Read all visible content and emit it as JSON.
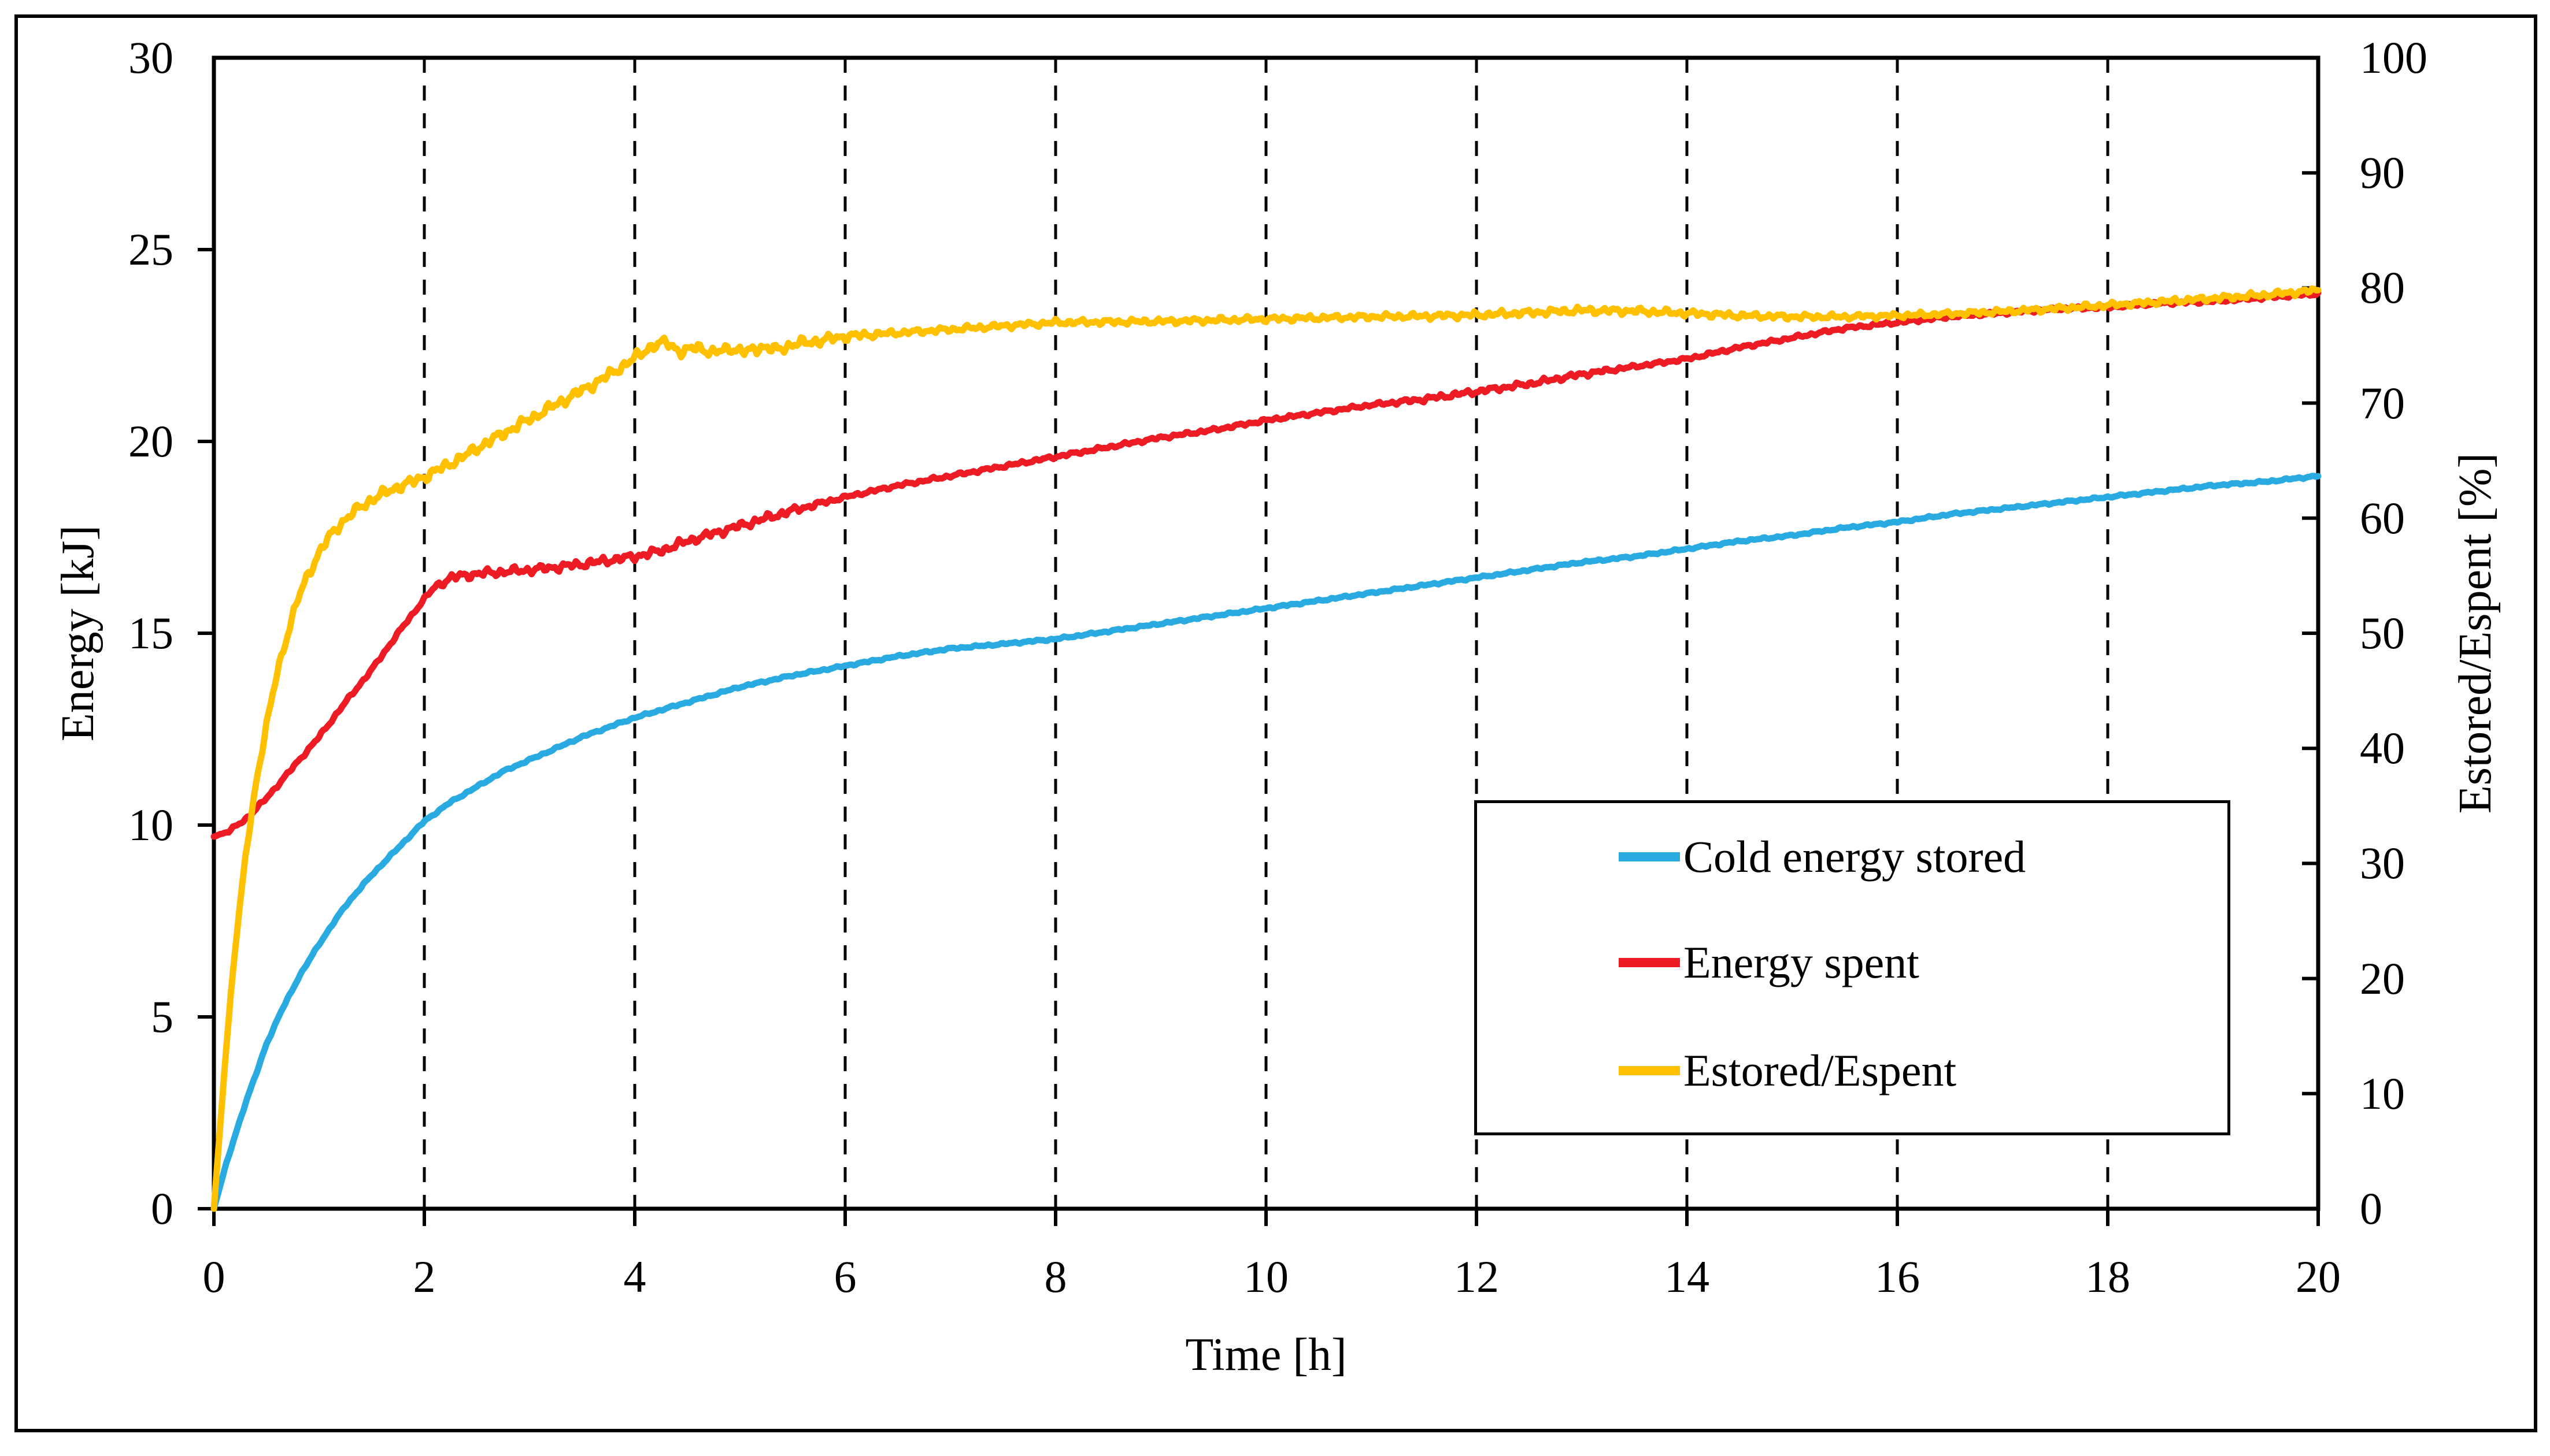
{
  "figure": {
    "background": "#ffffff",
    "border_color": "#000000"
  },
  "chart_data": {
    "type": "line",
    "title": "",
    "xlabel": "Time [h]",
    "ylabel_left": "Energy [kJ]",
    "ylabel_right": "Estored/Espent [%]",
    "x_range": [
      0,
      20
    ],
    "x_tick_step": 2,
    "x_tick_labels": [
      "0",
      "2",
      "4",
      "6",
      "8",
      "10",
      "12",
      "14",
      "16",
      "18",
      "20"
    ],
    "y_left_range": [
      0,
      30
    ],
    "y_left_tick_step": 5,
    "y_left_tick_labels": [
      "0",
      "5",
      "10",
      "15",
      "20",
      "25",
      "30"
    ],
    "y_right_range": [
      0,
      100
    ],
    "y_right_tick_step": 10,
    "y_right_tick_labels": [
      "0",
      "10",
      "20",
      "30",
      "40",
      "50",
      "60",
      "70",
      "80",
      "90",
      "100"
    ],
    "grid": {
      "vertical_dashed": true,
      "horizontal": false,
      "color": "#000000"
    },
    "legend": {
      "position": "middle-right",
      "border": true
    },
    "series": [
      {
        "name": "Cold energy stored",
        "color": "#29ABE2",
        "axis": "left",
        "noise_amps": [
          [
            0,
            0.03
          ],
          [
            20,
            0.03
          ]
        ],
        "points": [
          [
            0,
            0
          ],
          [
            0.1,
            1.0
          ],
          [
            0.2,
            1.9
          ],
          [
            0.3,
            2.75
          ],
          [
            0.4,
            3.5
          ],
          [
            0.5,
            4.3
          ],
          [
            0.65,
            5.2
          ],
          [
            0.8,
            6.0
          ],
          [
            1,
            6.9
          ],
          [
            1.25,
            7.9
          ],
          [
            1.5,
            8.7
          ],
          [
            1.75,
            9.4
          ],
          [
            2,
            10.1
          ],
          [
            2.25,
            10.6
          ],
          [
            2.5,
            11.0
          ],
          [
            2.75,
            11.4
          ],
          [
            3,
            11.7
          ],
          [
            3.25,
            12.0
          ],
          [
            3.5,
            12.3
          ],
          [
            3.75,
            12.55
          ],
          [
            4,
            12.8
          ],
          [
            4.5,
            13.2
          ],
          [
            5,
            13.6
          ],
          [
            5.5,
            13.9
          ],
          [
            6,
            14.15
          ],
          [
            6.5,
            14.4
          ],
          [
            7,
            14.6
          ],
          [
            7.5,
            14.72
          ],
          [
            8,
            14.85
          ],
          [
            8.5,
            15.05
          ],
          [
            9,
            15.25
          ],
          [
            9.5,
            15.45
          ],
          [
            10,
            15.65
          ],
          [
            10.5,
            15.85
          ],
          [
            11,
            16.05
          ],
          [
            11.5,
            16.25
          ],
          [
            12,
            16.45
          ],
          [
            12.5,
            16.65
          ],
          [
            13,
            16.85
          ],
          [
            13.5,
            17.0
          ],
          [
            14,
            17.2
          ],
          [
            14.5,
            17.4
          ],
          [
            15,
            17.55
          ],
          [
            15.5,
            17.75
          ],
          [
            16,
            17.9
          ],
          [
            16.5,
            18.1
          ],
          [
            17,
            18.25
          ],
          [
            17.5,
            18.4
          ],
          [
            18,
            18.55
          ],
          [
            18.5,
            18.7
          ],
          [
            19,
            18.85
          ],
          [
            19.5,
            18.95
          ],
          [
            20,
            19.1
          ]
        ]
      },
      {
        "name": "Energy spent",
        "color": "#ED1C24",
        "axis": "left",
        "noise_amps": [
          [
            0,
            0.05
          ],
          [
            2,
            0.05
          ],
          [
            2.2,
            0.12
          ],
          [
            5.4,
            0.12
          ],
          [
            6,
            0.05
          ],
          [
            11,
            0.05
          ],
          [
            11.5,
            0.08
          ],
          [
            13,
            0.08
          ],
          [
            13.5,
            0.05
          ],
          [
            20,
            0.05
          ]
        ],
        "points": [
          [
            0,
            9.7
          ],
          [
            0.15,
            9.85
          ],
          [
            0.3,
            10.15
          ],
          [
            0.5,
            10.7
          ],
          [
            0.75,
            11.5
          ],
          [
            1,
            12.3
          ],
          [
            1.25,
            13.2
          ],
          [
            1.5,
            14.05
          ],
          [
            1.75,
            15.0
          ],
          [
            2,
            15.9
          ],
          [
            2.1,
            16.2
          ],
          [
            2.25,
            16.45
          ],
          [
            2.5,
            16.55
          ],
          [
            2.75,
            16.6
          ],
          [
            3,
            16.65
          ],
          [
            3.25,
            16.72
          ],
          [
            3.5,
            16.8
          ],
          [
            3.75,
            16.9
          ],
          [
            4,
            17.0
          ],
          [
            4.25,
            17.15
          ],
          [
            4.5,
            17.4
          ],
          [
            4.75,
            17.6
          ],
          [
            5,
            17.8
          ],
          [
            5.5,
            18.2
          ],
          [
            6,
            18.55
          ],
          [
            6.5,
            18.85
          ],
          [
            7,
            19.1
          ],
          [
            7.5,
            19.35
          ],
          [
            8,
            19.6
          ],
          [
            8.5,
            19.85
          ],
          [
            9,
            20.1
          ],
          [
            9.5,
            20.3
          ],
          [
            10,
            20.55
          ],
          [
            10.5,
            20.75
          ],
          [
            11,
            20.95
          ],
          [
            11.5,
            21.1
          ],
          [
            12,
            21.3
          ],
          [
            12.5,
            21.5
          ],
          [
            13,
            21.75
          ],
          [
            13.5,
            21.95
          ],
          [
            14,
            22.15
          ],
          [
            14.5,
            22.45
          ],
          [
            15,
            22.7
          ],
          [
            15.5,
            22.95
          ],
          [
            16,
            23.1
          ],
          [
            16.5,
            23.25
          ],
          [
            17,
            23.35
          ],
          [
            17.5,
            23.45
          ],
          [
            18,
            23.5
          ],
          [
            18.5,
            23.6
          ],
          [
            19,
            23.65
          ],
          [
            19.5,
            23.75
          ],
          [
            20,
            23.85
          ]
        ]
      },
      {
        "name": "Estored/Espent",
        "color": "#FFC000",
        "axis": "right",
        "noise_amps": [
          [
            0,
            0.15
          ],
          [
            0.7,
            0.5
          ],
          [
            5.8,
            0.5
          ],
          [
            6.5,
            0.28
          ],
          [
            11,
            0.28
          ],
          [
            13,
            0.35
          ],
          [
            16,
            0.25
          ],
          [
            20,
            0.3
          ]
        ],
        "points": [
          [
            0,
            0
          ],
          [
            0.05,
            6
          ],
          [
            0.1,
            12
          ],
          [
            0.15,
            17.5
          ],
          [
            0.2,
            22.5
          ],
          [
            0.3,
            30.5
          ],
          [
            0.4,
            37
          ],
          [
            0.5,
            42
          ],
          [
            0.6,
            46.5
          ],
          [
            0.7,
            50
          ],
          [
            0.8,
            53
          ],
          [
            0.9,
            55.2
          ],
          [
            1,
            57
          ],
          [
            1.1,
            58.4
          ],
          [
            1.2,
            59.5
          ],
          [
            1.3,
            60.3
          ],
          [
            1.4,
            61
          ],
          [
            1.5,
            61.6
          ],
          [
            1.6,
            62.1
          ],
          [
            1.7,
            62.5
          ],
          [
            1.8,
            62.9
          ],
          [
            1.9,
            63.2
          ],
          [
            2,
            63.6
          ],
          [
            2.2,
            64.5
          ],
          [
            2.4,
            65.5
          ],
          [
            2.6,
            66.6
          ],
          [
            2.8,
            67.6
          ],
          [
            3,
            68.6
          ],
          [
            3.2,
            69.6
          ],
          [
            3.4,
            70.6
          ],
          [
            3.6,
            71.6
          ],
          [
            3.8,
            72.7
          ],
          [
            4,
            73.9
          ],
          [
            4.15,
            74.9
          ],
          [
            4.3,
            75.3
          ],
          [
            4.45,
            74.4
          ],
          [
            4.6,
            74.9
          ],
          [
            4.75,
            74.3
          ],
          [
            4.9,
            74.8
          ],
          [
            5.05,
            74.4
          ],
          [
            5.2,
            74.9
          ],
          [
            5.35,
            74.6
          ],
          [
            5.5,
            75.1
          ],
          [
            5.75,
            75.4
          ],
          [
            6,
            75.8
          ],
          [
            6.5,
            76.1
          ],
          [
            7,
            76.4
          ],
          [
            7.5,
            76.7
          ],
          [
            8,
            77.0
          ],
          [
            8.5,
            77.05
          ],
          [
            9,
            77.1
          ],
          [
            9.5,
            77.2
          ],
          [
            10,
            77.3
          ],
          [
            10.5,
            77.4
          ],
          [
            11,
            77.5
          ],
          [
            11.5,
            77.55
          ],
          [
            12,
            77.65
          ],
          [
            12.5,
            77.85
          ],
          [
            13,
            78.05
          ],
          [
            13.5,
            78.0
          ],
          [
            14,
            77.8
          ],
          [
            14.5,
            77.6
          ],
          [
            15,
            77.5
          ],
          [
            15.5,
            77.5
          ],
          [
            16,
            77.6
          ],
          [
            16.5,
            77.75
          ],
          [
            17,
            77.95
          ],
          [
            17.5,
            78.2
          ],
          [
            18,
            78.5
          ],
          [
            18.5,
            78.8
          ],
          [
            19,
            79.1
          ],
          [
            19.5,
            79.4
          ],
          [
            20,
            79.8
          ]
        ]
      }
    ]
  }
}
